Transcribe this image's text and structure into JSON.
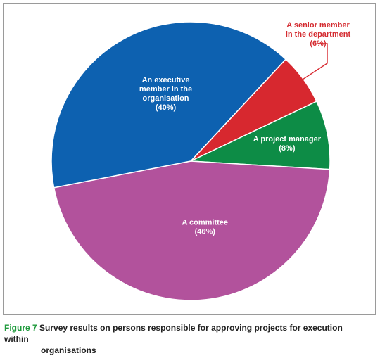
{
  "chart_data": {
    "type": "pie",
    "start_angle_deg": 43,
    "direction": "clockwise",
    "slices": [
      {
        "key": "senior",
        "label_lines": [
          "A senior member",
          "in the department",
          "(6%)"
        ],
        "value": 6,
        "color": "#d7282f",
        "label_style": "callout"
      },
      {
        "key": "pm",
        "label_lines": [
          "A project manager",
          "(8%)"
        ],
        "value": 8,
        "color": "#0d8c46",
        "label_style": "inside"
      },
      {
        "key": "committee",
        "label_lines": [
          "A committee",
          "(46%)"
        ],
        "value": 46,
        "color": "#b2529c",
        "label_style": "inside"
      },
      {
        "key": "exec",
        "label_lines": [
          "An executive",
          "member in the",
          "organisation",
          "(40%)"
        ],
        "value": 40,
        "color": "#0d61b0",
        "label_style": "inside"
      }
    ]
  },
  "caption": {
    "figure_label": "Figure 7",
    "text_line1": "Survey results on persons responsible for approving projects for execution within",
    "text_line2": "organisations"
  }
}
